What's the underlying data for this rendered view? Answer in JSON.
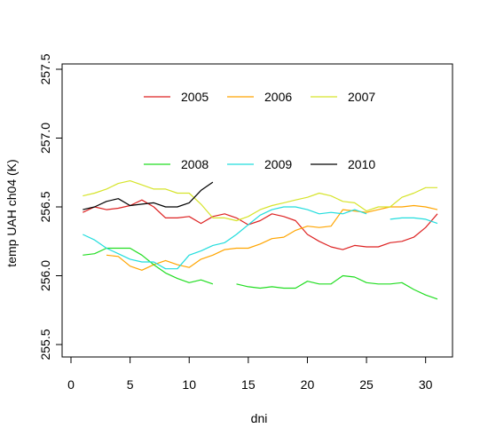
{
  "chart_data": {
    "type": "line",
    "xlabel": "dni",
    "ylabel": "temp UAH ch04 (K)",
    "xlim": [
      0,
      32
    ],
    "ylim": [
      255.5,
      257.5
    ],
    "xticks": [
      "0",
      "5",
      "10",
      "15",
      "20",
      "25",
      "30"
    ],
    "yticks": [
      "255.5",
      "256.0",
      "256.5",
      "257.0",
      "257.5"
    ],
    "grid": false,
    "legend_placement": "top, two rows of three",
    "series": [
      {
        "name": "2005",
        "color": "#dd2222",
        "x": [
          1,
          2,
          3,
          4,
          5,
          6,
          7,
          8,
          9,
          10,
          11,
          12,
          13,
          14,
          15,
          16,
          17,
          18,
          19,
          20,
          21,
          22,
          23,
          24,
          25,
          26,
          27,
          28,
          29,
          30,
          31
        ],
        "y": [
          256.46,
          256.5,
          256.48,
          256.49,
          256.51,
          256.55,
          256.5,
          256.42,
          256.42,
          256.43,
          256.38,
          256.43,
          256.45,
          256.42,
          256.37,
          256.4,
          256.45,
          256.43,
          256.4,
          256.3,
          256.25,
          256.21,
          256.19,
          256.22,
          256.21,
          256.21,
          256.24,
          256.25,
          256.28,
          256.35,
          256.45
        ]
      },
      {
        "name": "2006",
        "color": "#ffa500",
        "x": [
          3,
          4,
          5,
          6,
          7,
          8,
          9,
          10,
          11,
          12,
          13,
          14,
          15,
          16,
          17,
          18,
          19,
          20,
          21,
          22,
          23,
          24,
          25,
          26,
          27,
          28,
          29,
          30,
          31
        ],
        "y": [
          256.15,
          256.14,
          256.07,
          256.04,
          256.08,
          256.11,
          256.08,
          256.06,
          256.12,
          256.15,
          256.19,
          256.2,
          256.2,
          256.23,
          256.27,
          256.28,
          256.33,
          256.36,
          256.35,
          256.36,
          256.48,
          256.47,
          256.46,
          256.48,
          256.5,
          256.5,
          256.51,
          256.5,
          256.48
        ]
      },
      {
        "name": "2007",
        "color": "#d6e42a",
        "x": [
          1,
          2,
          3,
          4,
          5,
          6,
          7,
          8,
          9,
          10,
          11,
          12,
          13,
          14,
          15,
          16,
          17,
          18,
          19,
          20,
          21,
          22,
          23,
          24,
          25,
          26,
          27,
          28,
          29,
          30,
          31
        ],
        "y": [
          256.58,
          256.6,
          256.63,
          256.67,
          256.69,
          256.66,
          256.63,
          256.63,
          256.6,
          256.6,
          256.52,
          256.42,
          256.42,
          256.4,
          256.43,
          256.48,
          256.51,
          256.53,
          256.55,
          256.57,
          256.6,
          256.58,
          256.54,
          256.53,
          256.47,
          256.5,
          256.5,
          256.57,
          256.6,
          256.64,
          256.64
        ]
      },
      {
        "name": "2008",
        "color": "#22dd22",
        "x": [
          1,
          2,
          3,
          4,
          5,
          6,
          7,
          8,
          9,
          10,
          11,
          12,
          14,
          15,
          16,
          17,
          18,
          19,
          20,
          21,
          22,
          23,
          24,
          25,
          26,
          27,
          28,
          29,
          30,
          31
        ],
        "y": [
          256.15,
          256.16,
          256.2,
          256.2,
          256.2,
          256.15,
          256.08,
          256.02,
          255.98,
          255.95,
          255.97,
          255.94,
          255.94,
          255.92,
          255.91,
          255.92,
          255.91,
          255.91,
          255.96,
          255.94,
          255.94,
          256.0,
          255.99,
          255.95,
          255.94,
          255.94,
          255.95,
          255.9,
          255.86,
          255.83
        ]
      },
      {
        "name": "2009",
        "color": "#22dddd",
        "x": [
          1,
          2,
          3,
          4,
          5,
          6,
          7,
          8,
          9,
          10,
          11,
          12,
          13,
          14,
          15,
          16,
          17,
          18,
          19,
          20,
          21,
          22,
          23,
          24,
          25,
          27,
          28,
          29,
          30,
          31
        ],
        "y": [
          256.3,
          256.26,
          256.2,
          256.16,
          256.12,
          256.1,
          256.1,
          256.05,
          256.05,
          256.15,
          256.18,
          256.22,
          256.24,
          256.3,
          256.37,
          256.44,
          256.48,
          256.5,
          256.5,
          256.48,
          256.45,
          256.46,
          256.45,
          256.48,
          256.45,
          256.41,
          256.42,
          256.42,
          256.41,
          256.38
        ]
      },
      {
        "name": "2010",
        "color": "#000000",
        "x": [
          1,
          2,
          3,
          4,
          5,
          6,
          7,
          8,
          9,
          10,
          11,
          12
        ],
        "y": [
          256.48,
          256.5,
          256.54,
          256.56,
          256.51,
          256.52,
          256.53,
          256.5,
          256.5,
          256.53,
          256.62,
          256.68
        ]
      }
    ]
  }
}
